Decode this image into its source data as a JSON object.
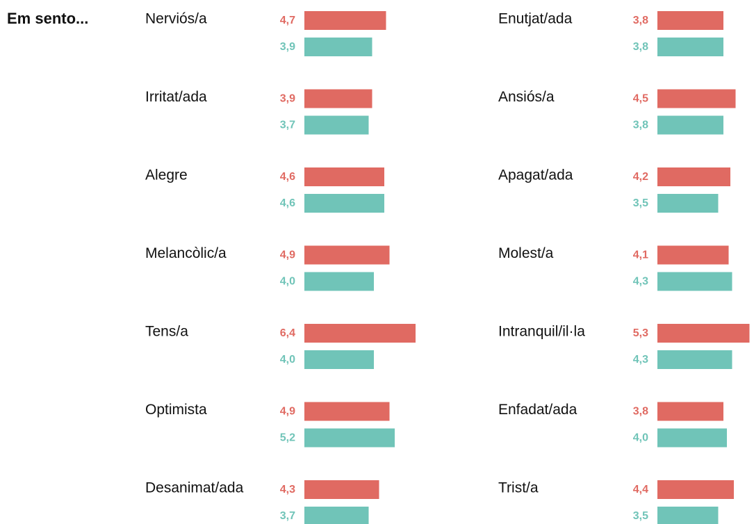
{
  "chart_data": {
    "type": "bar",
    "title": "Em sento...",
    "categories": [
      "Nerviós/a",
      "Irritat/ada",
      "Alegre",
      "Melancòlic/a",
      "Tens/a",
      "Optimista",
      "Desanimat/ada",
      "Enutjat/ada",
      "Ansiós/a",
      "Apagat/ada",
      "Molest/a",
      "Intranquil/il·la",
      "Enfadat/ada",
      "Trist/a"
    ],
    "series": [
      {
        "color": "#e06a62",
        "values": [
          4.7,
          3.9,
          4.6,
          4.9,
          6.4,
          4.9,
          4.3,
          3.8,
          4.5,
          4.2,
          4.1,
          5.3,
          3.8,
          4.4
        ],
        "value_labels": [
          "4,7",
          "3,9",
          "4,6",
          "4,9",
          "6,4",
          "4,9",
          "4,3",
          "3,8",
          "4,5",
          "4,2",
          "4,1",
          "5,3",
          "3,8",
          "4,4"
        ]
      },
      {
        "color": "#70c4b8",
        "values": [
          3.9,
          3.7,
          4.6,
          4.0,
          4.0,
          5.2,
          3.7,
          3.8,
          3.8,
          3.5,
          4.3,
          4.3,
          4.0,
          3.5
        ],
        "value_labels": [
          "3,9",
          "3,7",
          "4,6",
          "4,0",
          "4,0",
          "5,2",
          "3,7",
          "3,8",
          "3,8",
          "3,5",
          "4,3",
          "4,3",
          "4,0",
          "3,5"
        ]
      }
    ]
  }
}
